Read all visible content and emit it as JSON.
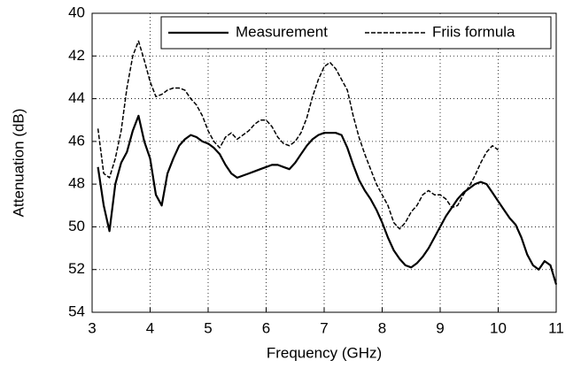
{
  "chart_data": {
    "type": "line",
    "xlabel": "Frequency (GHz)",
    "ylabel": "Attenuation (dB)",
    "xlim": [
      3,
      11
    ],
    "xticks": [
      3,
      4,
      5,
      6,
      7,
      8,
      9,
      10,
      11
    ],
    "ylim": [
      54,
      40
    ],
    "yticks": [
      40,
      42,
      44,
      46,
      48,
      50,
      52,
      54
    ],
    "grid": true,
    "legend": "upper right",
    "series": [
      {
        "name": "Measurement",
        "color": "#000000",
        "style": "solid",
        "x": [
          3.1,
          3.2,
          3.3,
          3.4,
          3.5,
          3.6,
          3.7,
          3.8,
          3.9,
          4.0,
          4.1,
          4.2,
          4.3,
          4.4,
          4.5,
          4.6,
          4.7,
          4.8,
          4.9,
          5.0,
          5.1,
          5.2,
          5.3,
          5.4,
          5.5,
          5.6,
          5.7,
          5.8,
          5.9,
          6.0,
          6.1,
          6.2,
          6.3,
          6.4,
          6.5,
          6.6,
          6.7,
          6.8,
          6.9,
          7.0,
          7.1,
          7.2,
          7.3,
          7.4,
          7.5,
          7.6,
          7.7,
          7.8,
          7.9,
          8.0,
          8.1,
          8.2,
          8.3,
          8.4,
          8.5,
          8.6,
          8.7,
          8.8,
          8.9,
          9.0,
          9.1,
          9.2,
          9.3,
          9.4,
          9.5,
          9.6,
          9.7,
          9.8,
          9.9,
          10.0,
          10.1,
          10.2,
          10.3,
          10.4,
          10.5,
          10.6,
          10.7,
          10.8,
          10.9,
          11.0
        ],
        "values": [
          47.2,
          49,
          50.2,
          48,
          47,
          46.5,
          45.5,
          44.8,
          46,
          46.8,
          48.5,
          49,
          47.5,
          46.8,
          46.2,
          45.9,
          45.7,
          45.8,
          46,
          46.1,
          46.3,
          46.6,
          47.1,
          47.5,
          47.7,
          47.6,
          47.5,
          47.4,
          47.3,
          47.2,
          47.1,
          47.1,
          47.2,
          47.3,
          47.0,
          46.6,
          46.2,
          45.9,
          45.7,
          45.6,
          45.6,
          45.6,
          45.7,
          46.3,
          47.1,
          47.8,
          48.3,
          48.7,
          49.2,
          49.8,
          50.5,
          51.1,
          51.5,
          51.8,
          51.9,
          51.7,
          51.4,
          51.0,
          50.5,
          50.0,
          49.5,
          49.1,
          48.7,
          48.4,
          48.2,
          48.0,
          47.9,
          48.0,
          48.4,
          48.8,
          49.2,
          49.6,
          49.9,
          50.5,
          51.3,
          51.8,
          52.0,
          51.6,
          51.8,
          52.7
        ]
      },
      {
        "name": "Friis formula",
        "color": "#000000",
        "style": "dashed",
        "x": [
          3.1,
          3.2,
          3.3,
          3.4,
          3.5,
          3.6,
          3.7,
          3.8,
          3.9,
          4.0,
          4.1,
          4.2,
          4.3,
          4.4,
          4.5,
          4.6,
          4.7,
          4.8,
          4.9,
          5.0,
          5.1,
          5.2,
          5.3,
          5.4,
          5.5,
          5.6,
          5.7,
          5.8,
          5.9,
          6.0,
          6.1,
          6.2,
          6.3,
          6.4,
          6.5,
          6.6,
          6.7,
          6.8,
          6.9,
          7.0,
          7.1,
          7.2,
          7.3,
          7.4,
          7.5,
          7.6,
          7.7,
          7.8,
          7.9,
          8.0,
          8.1,
          8.2,
          8.3,
          8.4,
          8.5,
          8.6,
          8.7,
          8.8,
          8.9,
          9.0,
          9.1,
          9.2,
          9.3,
          9.4,
          9.5,
          9.6,
          9.7,
          9.8,
          9.9,
          10.0
        ],
        "values": [
          45.4,
          47.5,
          47.7,
          46.8,
          45.5,
          43.5,
          42,
          41.3,
          42.2,
          43.2,
          43.9,
          43.8,
          43.6,
          43.5,
          43.5,
          43.6,
          44,
          44.3,
          44.8,
          45.5,
          46.0,
          46.3,
          45.8,
          45.6,
          45.9,
          45.7,
          45.5,
          45.2,
          45.0,
          45.0,
          45.3,
          45.8,
          46.1,
          46.2,
          46.0,
          45.6,
          44.9,
          43.9,
          43.1,
          42.5,
          42.3,
          42.6,
          43.1,
          43.6,
          44.8,
          45.8,
          46.6,
          47.3,
          48.0,
          48.5,
          49.0,
          49.8,
          50.1,
          49.8,
          49.3,
          49.0,
          48.5,
          48.3,
          48.5,
          48.5,
          48.7,
          49.1,
          49.0,
          48.5,
          48.1,
          47.6,
          47.0,
          46.5,
          46.2,
          46.4
        ]
      }
    ]
  }
}
